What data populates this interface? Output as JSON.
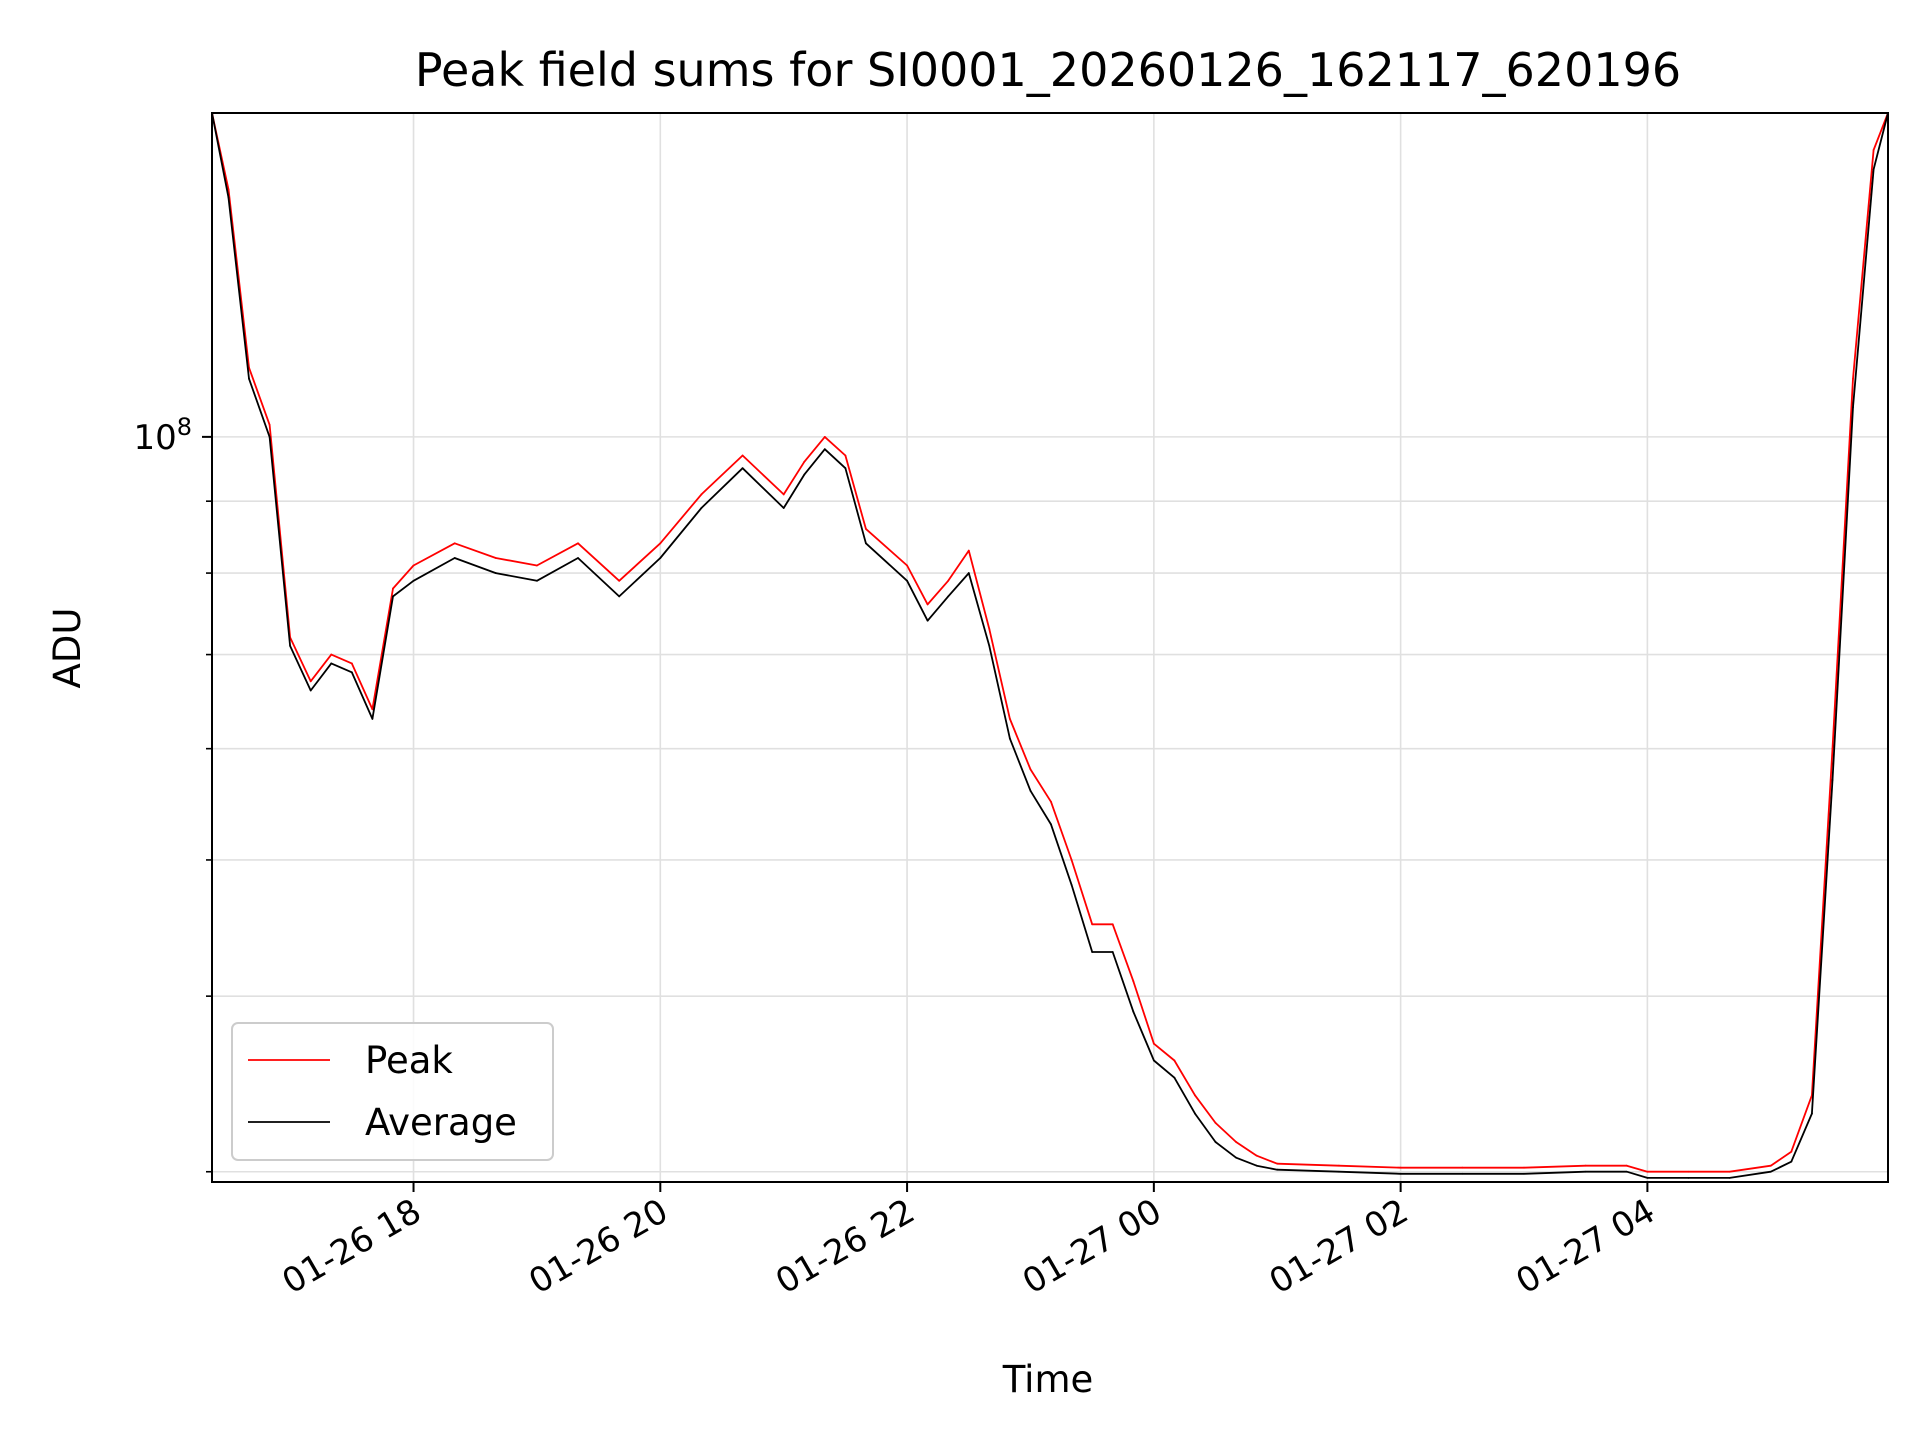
{
  "chart_data": {
    "type": "line",
    "title": "Peak field sums for SI0001_20260126_162117_620196",
    "xlabel": "Time",
    "ylabel": "ADU",
    "y_scale": "log",
    "ylim": [
      29500000,
      170000000
    ],
    "xlim": [
      "2026-01-26 16:22",
      "2026-01-27 05:57"
    ],
    "x_tick_labels": [
      "01-26 18",
      "01-26 20",
      "01-26 22",
      "01-27 00",
      "01-27 02",
      "01-27 04"
    ],
    "x_ticks": [
      "2026-01-26 18:00",
      "2026-01-26 20:00",
      "2026-01-26 22:00",
      "2026-01-27 00:00",
      "2026-01-27 02:00",
      "2026-01-27 04:00"
    ],
    "y_tick_labels": [
      {
        "value": 100000000,
        "base": "10",
        "exponent": "8"
      }
    ],
    "y_minor_ticks": [
      30000000,
      40000000,
      50000000,
      60000000,
      70000000,
      80000000,
      90000000,
      200000000
    ],
    "grid": true,
    "legend_position": "lower-left",
    "colors": {
      "Peak": "#ff0000",
      "Average": "#000000",
      "grid": "#e0e0e0"
    },
    "series": [
      {
        "name": "Peak",
        "x": [
          "2026-01-26 16:22",
          "2026-01-26 16:30",
          "2026-01-26 16:40",
          "2026-01-26 16:50",
          "2026-01-26 17:00",
          "2026-01-26 17:10",
          "2026-01-26 17:20",
          "2026-01-26 17:30",
          "2026-01-26 17:40",
          "2026-01-26 17:50",
          "2026-01-26 18:00",
          "2026-01-26 18:20",
          "2026-01-26 18:40",
          "2026-01-26 19:00",
          "2026-01-26 19:20",
          "2026-01-26 19:40",
          "2026-01-26 20:00",
          "2026-01-26 20:20",
          "2026-01-26 20:40",
          "2026-01-26 21:00",
          "2026-01-26 21:10",
          "2026-01-26 21:20",
          "2026-01-26 21:30",
          "2026-01-26 21:40",
          "2026-01-26 22:00",
          "2026-01-26 22:10",
          "2026-01-26 22:20",
          "2026-01-26 22:30",
          "2026-01-26 22:40",
          "2026-01-26 22:50",
          "2026-01-26 23:00",
          "2026-01-26 23:10",
          "2026-01-26 23:20",
          "2026-01-26 23:30",
          "2026-01-26 23:40",
          "2026-01-26 23:50",
          "2026-01-27 00:00",
          "2026-01-27 00:10",
          "2026-01-27 00:20",
          "2026-01-27 00:30",
          "2026-01-27 00:40",
          "2026-01-27 00:50",
          "2026-01-27 01:00",
          "2026-01-27 01:30",
          "2026-01-27 02:00",
          "2026-01-27 02:30",
          "2026-01-27 03:00",
          "2026-01-27 03:30",
          "2026-01-27 03:50",
          "2026-01-27 04:00",
          "2026-01-27 04:20",
          "2026-01-27 04:40",
          "2026-01-27 05:00",
          "2026-01-27 05:10",
          "2026-01-27 05:20",
          "2026-01-27 05:30",
          "2026-01-27 05:40",
          "2026-01-27 05:50",
          "2026-01-27 05:57"
        ],
        "values": [
          170000000,
          150000000,
          112000000,
          102000000,
          72000000,
          67000000,
          70000000,
          69000000,
          64000000,
          78000000,
          81000000,
          84000000,
          82000000,
          81000000,
          84000000,
          79000000,
          84000000,
          91000000,
          97000000,
          91000000,
          96000000,
          100000000,
          97000000,
          86000000,
          81000000,
          76000000,
          79000000,
          83000000,
          73000000,
          63000000,
          58000000,
          55000000,
          50000000,
          45000000,
          45000000,
          41000000,
          37000000,
          36000000,
          34000000,
          32500000,
          31500000,
          30800000,
          30400000,
          30300000,
          30200000,
          30200000,
          30200000,
          30300000,
          30300000,
          30000000,
          30000000,
          30000000,
          30300000,
          31000000,
          34000000,
          60000000,
          110000000,
          160000000,
          170000000
        ]
      },
      {
        "name": "Average",
        "x": [
          "2026-01-26 16:22",
          "2026-01-26 16:30",
          "2026-01-26 16:40",
          "2026-01-26 16:50",
          "2026-01-26 17:00",
          "2026-01-26 17:10",
          "2026-01-26 17:20",
          "2026-01-26 17:30",
          "2026-01-26 17:40",
          "2026-01-26 17:50",
          "2026-01-26 18:00",
          "2026-01-26 18:20",
          "2026-01-26 18:40",
          "2026-01-26 19:00",
          "2026-01-26 19:20",
          "2026-01-26 19:40",
          "2026-01-26 20:00",
          "2026-01-26 20:20",
          "2026-01-26 20:40",
          "2026-01-26 21:00",
          "2026-01-26 21:10",
          "2026-01-26 21:20",
          "2026-01-26 21:30",
          "2026-01-26 21:40",
          "2026-01-26 22:00",
          "2026-01-26 22:10",
          "2026-01-26 22:20",
          "2026-01-26 22:30",
          "2026-01-26 22:40",
          "2026-01-26 22:50",
          "2026-01-26 23:00",
          "2026-01-26 23:10",
          "2026-01-26 23:20",
          "2026-01-26 23:30",
          "2026-01-26 23:40",
          "2026-01-26 23:50",
          "2026-01-27 00:00",
          "2026-01-27 00:10",
          "2026-01-27 00:20",
          "2026-01-27 00:30",
          "2026-01-27 00:40",
          "2026-01-27 00:50",
          "2026-01-27 01:00",
          "2026-01-27 01:30",
          "2026-01-27 02:00",
          "2026-01-27 02:30",
          "2026-01-27 03:00",
          "2026-01-27 03:30",
          "2026-01-27 03:50",
          "2026-01-27 04:00",
          "2026-01-27 04:20",
          "2026-01-27 04:40",
          "2026-01-27 05:00",
          "2026-01-27 05:10",
          "2026-01-27 05:20",
          "2026-01-27 05:30",
          "2026-01-27 05:40",
          "2026-01-27 05:50",
          "2026-01-27 05:57"
        ],
        "values": [
          170000000,
          148000000,
          110000000,
          100000000,
          71000000,
          66000000,
          69000000,
          68000000,
          63000000,
          77000000,
          79000000,
          82000000,
          80000000,
          79000000,
          82000000,
          77000000,
          82000000,
          89000000,
          95000000,
          89000000,
          94000000,
          98000000,
          95000000,
          84000000,
          79000000,
          74000000,
          77000000,
          80000000,
          71000000,
          61000000,
          56000000,
          53000000,
          48000000,
          43000000,
          43000000,
          39000000,
          36000000,
          35000000,
          33000000,
          31500000,
          30700000,
          30300000,
          30100000,
          30000000,
          29900000,
          29900000,
          29900000,
          30000000,
          30000000,
          29700000,
          29700000,
          29700000,
          30000000,
          30500000,
          33000000,
          57000000,
          105000000,
          155000000,
          170000000
        ]
      }
    ]
  }
}
